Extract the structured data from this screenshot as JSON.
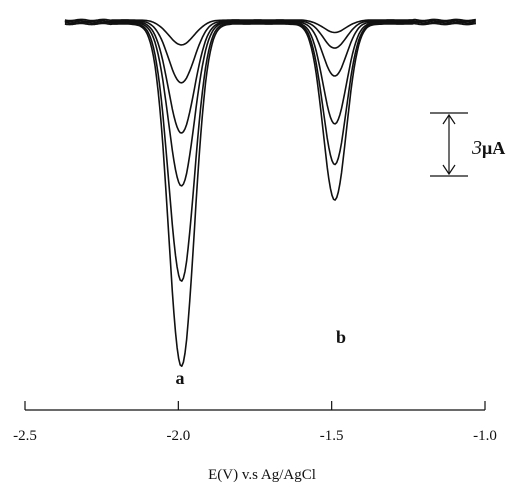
{
  "chart_data": {
    "type": "line",
    "title": "",
    "xlabel": "E(V) v.s Ag/AgCl",
    "ylabel": "",
    "xlim": [
      -2.5,
      -1.0
    ],
    "x_ticks": [
      -2.5,
      -2.0,
      -1.5,
      -1.0
    ],
    "x_tick_labels": [
      "-2.5",
      "-2.0",
      "-1.5",
      "-1.0"
    ],
    "y_unit": "current (µA), relative to baseline",
    "grid": false,
    "legend": "none",
    "scale_bar": {
      "value": 3,
      "label_number": "3",
      "label_unit": "μA"
    },
    "peak_labels": [
      {
        "text": "a",
        "x": -2.0
      },
      {
        "text": "b",
        "x": -1.49
      }
    ],
    "peaks": {
      "a": {
        "center": -1.99,
        "width": 0.042
      },
      "b": {
        "center": -1.49,
        "width": 0.038
      }
    },
    "series": [
      {
        "amplitude_a": 1.0,
        "amplitude_b": 0.5
      },
      {
        "amplitude_a": 2.5,
        "amplitude_b": 1.1
      },
      {
        "amplitude_a": 4.5,
        "amplitude_b": 2.2
      },
      {
        "amplitude_a": 6.6,
        "amplitude_b": 4.1
      },
      {
        "amplitude_a": 10.4,
        "amplitude_b": 5.7
      },
      {
        "amplitude_a": 13.8,
        "amplitude_b": 7.1
      }
    ],
    "x_start": -2.37,
    "x_end": -1.03
  }
}
